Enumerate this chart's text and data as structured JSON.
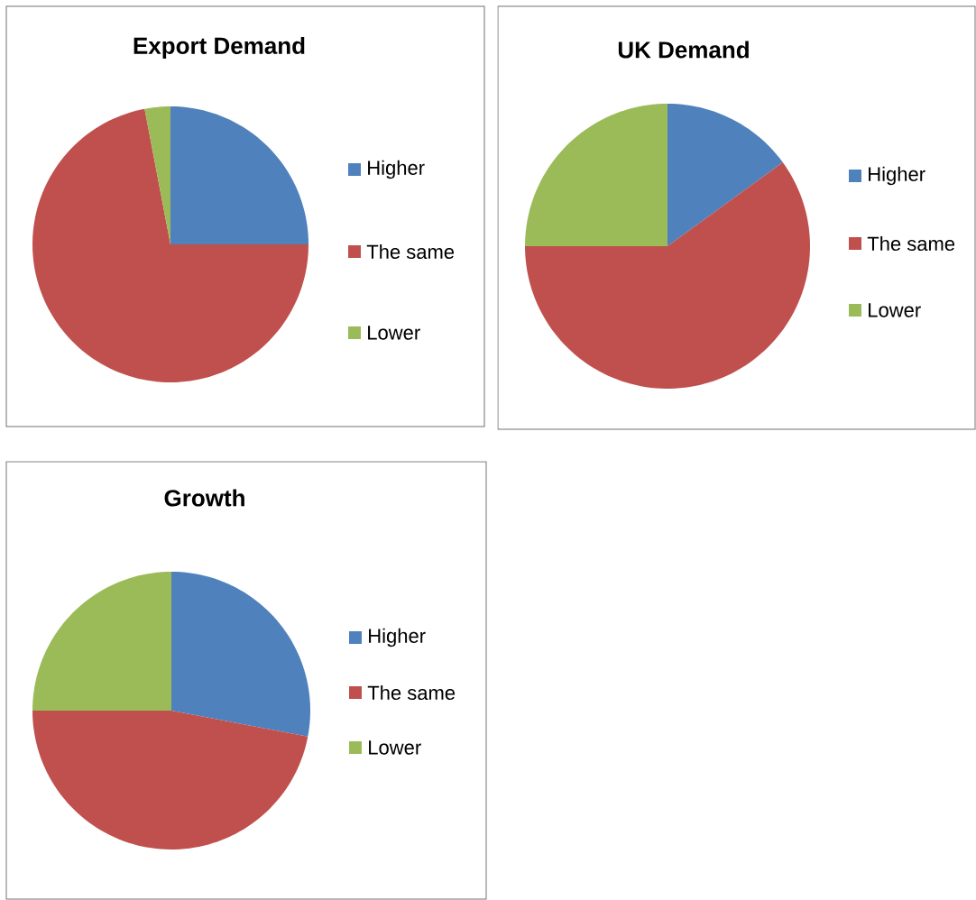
{
  "chart_data": [
    {
      "type": "pie",
      "title": "Export Demand",
      "categories": [
        "Higher",
        "The same",
        "Lower"
      ],
      "values": [
        25,
        72,
        3
      ],
      "colors": [
        "#4f81bd",
        "#c0504d",
        "#9bbb59"
      ],
      "legend": "right"
    },
    {
      "type": "pie",
      "title": "UK Demand",
      "categories": [
        "Higher",
        "The same",
        "Lower"
      ],
      "values": [
        15,
        60,
        25
      ],
      "colors": [
        "#4f81bd",
        "#c0504d",
        "#9bbb59"
      ],
      "legend": "right"
    },
    {
      "type": "pie",
      "title": "Growth",
      "categories": [
        "Higher",
        "The same",
        "Lower"
      ],
      "values": [
        28,
        47,
        25
      ],
      "colors": [
        "#4f81bd",
        "#c0504d",
        "#9bbb59"
      ],
      "legend": "right"
    }
  ]
}
